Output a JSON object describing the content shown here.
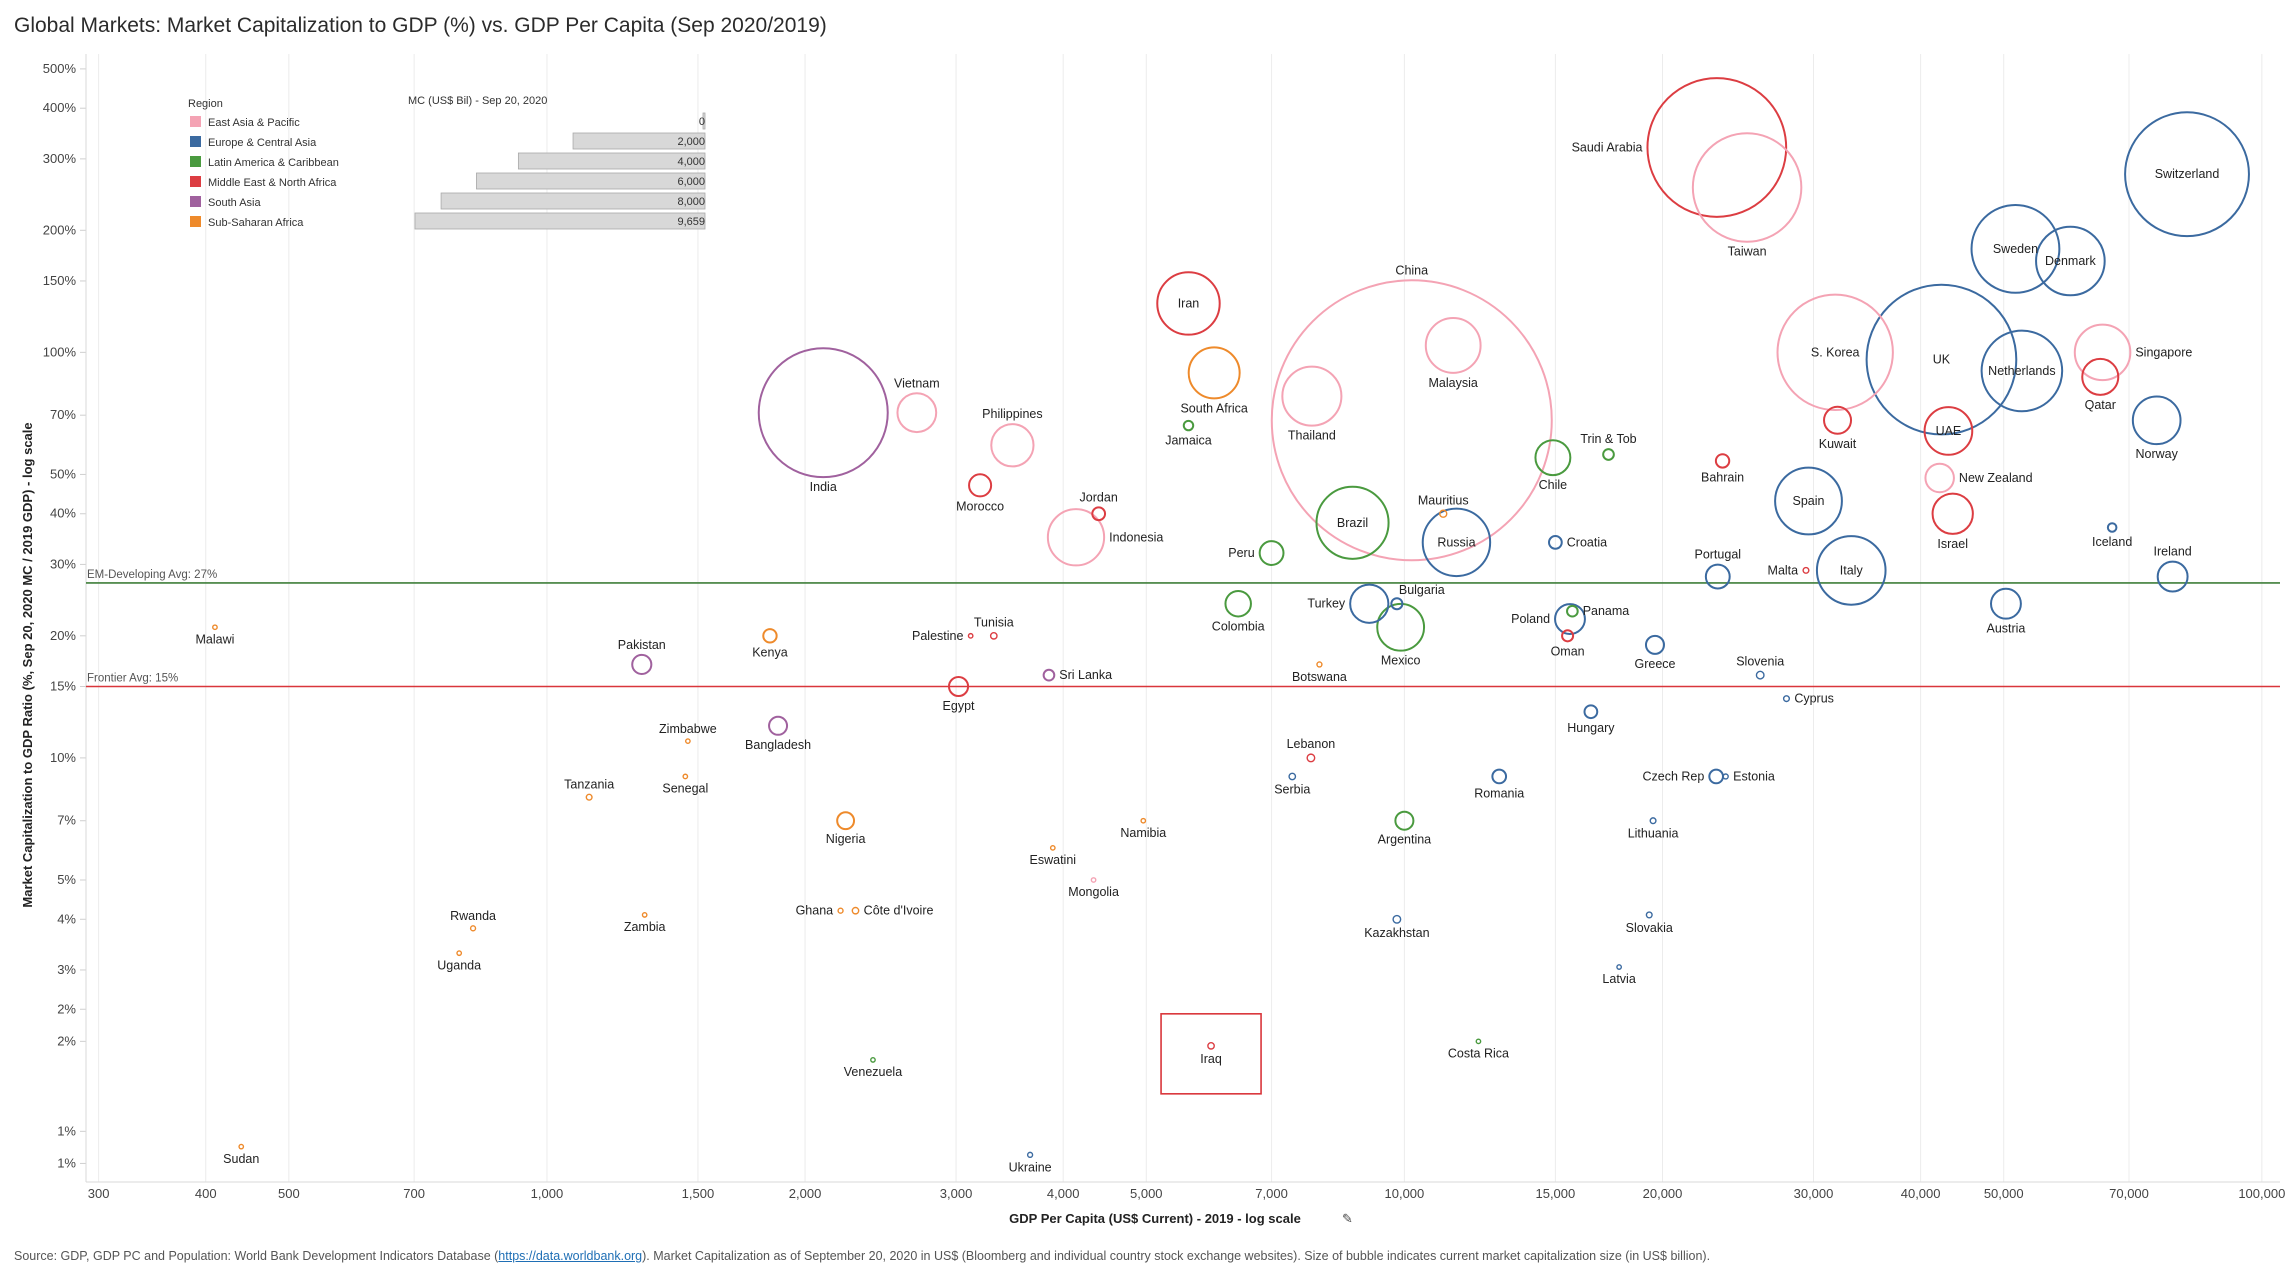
{
  "title": "Global Markets: Market Capitalization to GDP (%) vs. GDP Per Capita (Sep 2020/2019)",
  "source": {
    "prefix": "Source: GDP, GDP PC and Population: World Bank Development Indicators Database (",
    "link": "https://data.worldbank.org",
    "suffix": "). Market Capitalization as of September 20, 2020 in US$ (Bloomberg and individual country stock exchange websites). Size of bubble indicates current market capitalization size (in US$ billion)."
  },
  "colors": {
    "East Asia & Pacific": "#f4a3b4",
    "Europe & Central Asia": "#3b6aa0",
    "Latin America & Caribbean": "#4a9a3f",
    "Middle East & North Africa": "#dc3d42",
    "South Asia": "#a0619e",
    "Sub-Saharan Africa": "#ee8a2b",
    "em_line": "#3f7f3a",
    "frontier_line": "#d9363b",
    "highlight_box": "#d9363b"
  },
  "legend": {
    "region_title": "Region",
    "regions": [
      "East Asia & Pacific",
      "Europe & Central Asia",
      "Latin America & Caribbean",
      "Middle East & North Africa",
      "South Asia",
      "Sub-Saharan Africa"
    ],
    "size_title": "MC (US$ Bil) - Sep 20, 2020",
    "size_values": [
      0,
      2000,
      4000,
      6000,
      8000,
      9659
    ],
    "size_labels": [
      "0",
      "2,000",
      "4,000",
      "6,000",
      "8,000",
      "9,659"
    ]
  },
  "chart_data": {
    "type": "scatter",
    "xlabel": "GDP Per Capita (US$ Current) - 2019 - log scale",
    "ylabel": "Market Capitalization to GDP Ratio (%, Sep 20, 2020 MC / 2019 GDP) - log scale",
    "x_scale": "log",
    "y_scale": "log",
    "xlim": [
      290,
      105000
    ],
    "ylim": [
      0.9,
      520
    ],
    "x_ticks": [
      300,
      400,
      500,
      700,
      1000,
      1500,
      2000,
      3000,
      4000,
      5000,
      7000,
      10000,
      15000,
      20000,
      30000,
      40000,
      50000,
      70000,
      100000
    ],
    "x_tick_labels": [
      "300",
      "400",
      "500",
      "700",
      "1,000",
      "1,500",
      "2,000",
      "3,000",
      "4,000",
      "5,000",
      "7,000",
      "10,000",
      "15,000",
      "20,000",
      "30,000",
      "40,000",
      "50,000",
      "70,000",
      "100,000"
    ],
    "y_ticks": [
      1,
      1.2,
      2,
      2.4,
      3,
      4,
      5,
      7,
      10,
      15,
      20,
      30,
      40,
      50,
      70,
      100,
      150,
      200,
      300,
      400,
      500
    ],
    "y_tick_labels": [
      "1%",
      "1%",
      "2%",
      "2%",
      "3%",
      "4%",
      "5%",
      "7%",
      "10%",
      "15%",
      "20%",
      "30%",
      "40%",
      "50%",
      "70%",
      "100%",
      "150%",
      "200%",
      "300%",
      "400%",
      "500%"
    ],
    "reference_lines": [
      {
        "label": "EM-Developing Avg: 27%",
        "value": 27
      },
      {
        "label": "Frontier Avg: 15%",
        "value": 15
      }
    ],
    "highlight": {
      "label": "Iraq"
    },
    "points": [
      {
        "country": "Saudi Arabia",
        "region": "Middle East & North Africa",
        "gdp_pc": 23140,
        "mc_gdp": 320,
        "mc": 2370,
        "label_pos": "left"
      },
      {
        "country": "Taiwan",
        "region": "East Asia & Pacific",
        "gdp_pc": 25100,
        "mc_gdp": 255,
        "mc": 1450,
        "label_pos": "below"
      },
      {
        "country": "Switzerland",
        "region": "Europe & Central Asia",
        "gdp_pc": 81800,
        "mc_gdp": 275,
        "mc": 1890,
        "label_pos": "center"
      },
      {
        "country": "Sweden",
        "region": "Europe & Central Asia",
        "gdp_pc": 51600,
        "mc_gdp": 180,
        "mc": 950,
        "label_pos": "center"
      },
      {
        "country": "Denmark",
        "region": "Europe & Central Asia",
        "gdp_pc": 59800,
        "mc_gdp": 168,
        "mc": 580,
        "label_pos": "center"
      },
      {
        "country": "China",
        "region": "East Asia & Pacific",
        "gdp_pc": 10200,
        "mc_gdp": 68,
        "mc": 9659,
        "label_pos": "top"
      },
      {
        "country": "Iran",
        "region": "Middle East & North Africa",
        "gdp_pc": 5600,
        "mc_gdp": 132,
        "mc": 480,
        "label_pos": "center"
      },
      {
        "country": "South Africa",
        "region": "Sub-Saharan Africa",
        "gdp_pc": 6000,
        "mc_gdp": 89,
        "mc": 320,
        "label_pos": "below"
      },
      {
        "country": "Malaysia",
        "region": "East Asia & Pacific",
        "gdp_pc": 11400,
        "mc_gdp": 104,
        "mc": 370,
        "label_pos": "below"
      },
      {
        "country": "Thailand",
        "region": "East Asia & Pacific",
        "gdp_pc": 7800,
        "mc_gdp": 78,
        "mc": 430,
        "label_pos": "below"
      },
      {
        "country": "S. Korea",
        "region": "East Asia & Pacific",
        "gdp_pc": 31800,
        "mc_gdp": 100,
        "mc": 1640,
        "label_pos": "center"
      },
      {
        "country": "UK",
        "region": "Europe & Central Asia",
        "gdp_pc": 42300,
        "mc_gdp": 96,
        "mc": 2760,
        "label_pos": "center"
      },
      {
        "country": "Netherlands",
        "region": "Europe & Central Asia",
        "gdp_pc": 52500,
        "mc_gdp": 90,
        "mc": 800,
        "label_pos": "center"
      },
      {
        "country": "Singapore",
        "region": "East Asia & Pacific",
        "gdp_pc": 65200,
        "mc_gdp": 100,
        "mc": 380,
        "label_pos": "right"
      },
      {
        "country": "Qatar",
        "region": "Middle East & North Africa",
        "gdp_pc": 64800,
        "mc_gdp": 87,
        "mc": 160,
        "label_pos": "below"
      },
      {
        "country": "Norway",
        "region": "Europe & Central Asia",
        "gdp_pc": 75400,
        "mc_gdp": 68,
        "mc": 280,
        "label_pos": "below"
      },
      {
        "country": "Kuwait",
        "region": "Middle East & North Africa",
        "gdp_pc": 32000,
        "mc_gdp": 68,
        "mc": 90,
        "label_pos": "below"
      },
      {
        "country": "UAE",
        "region": "Middle East & North Africa",
        "gdp_pc": 43100,
        "mc_gdp": 64,
        "mc": 280,
        "label_pos": "center"
      },
      {
        "country": "New Zealand",
        "region": "East Asia & Pacific",
        "gdp_pc": 42100,
        "mc_gdp": 49,
        "mc": 100,
        "label_pos": "right"
      },
      {
        "country": "Israel",
        "region": "Middle East & North Africa",
        "gdp_pc": 43600,
        "mc_gdp": 40,
        "mc": 200,
        "label_pos": "below"
      },
      {
        "country": "Bahrain",
        "region": "Middle East & North Africa",
        "gdp_pc": 23500,
        "mc_gdp": 54,
        "mc": 22,
        "label_pos": "below"
      },
      {
        "country": "India",
        "region": "South Asia",
        "gdp_pc": 2100,
        "mc_gdp": 71,
        "mc": 2050,
        "label_pos": "below"
      },
      {
        "country": "Vietnam",
        "region": "East Asia & Pacific",
        "gdp_pc": 2700,
        "mc_gdp": 71,
        "mc": 185,
        "label_pos": "top"
      },
      {
        "country": "Philippines",
        "region": "East Asia & Pacific",
        "gdp_pc": 3490,
        "mc_gdp": 59,
        "mc": 220,
        "label_pos": "top"
      },
      {
        "country": "Jamaica",
        "region": "Latin America & Caribbean",
        "gdp_pc": 5600,
        "mc_gdp": 66,
        "mc": 11,
        "label_pos": "below"
      },
      {
        "country": "Morocco",
        "region": "Middle East & North Africa",
        "gdp_pc": 3200,
        "mc_gdp": 47,
        "mc": 60,
        "label_pos": "below"
      },
      {
        "country": "Jordan",
        "region": "Middle East & North Africa",
        "gdp_pc": 4400,
        "mc_gdp": 40,
        "mc": 20,
        "label_pos": "top"
      },
      {
        "country": "Indonesia",
        "region": "East Asia & Pacific",
        "gdp_pc": 4140,
        "mc_gdp": 35,
        "mc": 390,
        "label_pos": "right"
      },
      {
        "country": "Peru",
        "region": "Latin America & Caribbean",
        "gdp_pc": 7000,
        "mc_gdp": 32,
        "mc": 70,
        "label_pos": "left"
      },
      {
        "country": "Brazil",
        "region": "Latin America & Caribbean",
        "gdp_pc": 8700,
        "mc_gdp": 38,
        "mc": 640,
        "label_pos": "center"
      },
      {
        "country": "Russia",
        "region": "Europe & Central Asia",
        "gdp_pc": 11500,
        "mc_gdp": 34,
        "mc": 560,
        "label_pos": "center"
      },
      {
        "country": "Mauritius",
        "region": "Sub-Saharan Africa",
        "gdp_pc": 11100,
        "mc_gdp": 40,
        "mc": 6,
        "label_pos": "top"
      },
      {
        "country": "Chile",
        "region": "Latin America & Caribbean",
        "gdp_pc": 14900,
        "mc_gdp": 55,
        "mc": 150,
        "label_pos": "below"
      },
      {
        "country": "Trin & Tob",
        "region": "Latin America & Caribbean",
        "gdp_pc": 17300,
        "mc_gdp": 56,
        "mc": 14,
        "label_pos": "top"
      },
      {
        "country": "Croatia",
        "region": "Europe & Central Asia",
        "gdp_pc": 15000,
        "mc_gdp": 34,
        "mc": 20,
        "label_pos": "right"
      },
      {
        "country": "Portugal",
        "region": "Europe & Central Asia",
        "gdp_pc": 23200,
        "mc_gdp": 28,
        "mc": 70,
        "label_pos": "top"
      },
      {
        "country": "Spain",
        "region": "Europe & Central Asia",
        "gdp_pc": 29600,
        "mc_gdp": 43,
        "mc": 550,
        "label_pos": "center"
      },
      {
        "country": "Malta",
        "region": "Middle East & North Africa",
        "gdp_pc": 29400,
        "mc_gdp": 29,
        "mc": 4,
        "label_pos": "left"
      },
      {
        "country": "Italy",
        "region": "Europe & Central Asia",
        "gdp_pc": 33200,
        "mc_gdp": 29,
        "mc": 580,
        "label_pos": "center"
      },
      {
        "country": "Iceland",
        "region": "Europe & Central Asia",
        "gdp_pc": 66900,
        "mc_gdp": 37,
        "mc": 9,
        "label_pos": "below"
      },
      {
        "country": "Ireland",
        "region": "Europe & Central Asia",
        "gdp_pc": 78700,
        "mc_gdp": 28,
        "mc": 110,
        "label_pos": "top"
      },
      {
        "country": "Austria",
        "region": "Europe & Central Asia",
        "gdp_pc": 50300,
        "mc_gdp": 24,
        "mc": 110,
        "label_pos": "below"
      },
      {
        "country": "Colombia",
        "region": "Latin America & Caribbean",
        "gdp_pc": 6400,
        "mc_gdp": 24,
        "mc": 80,
        "label_pos": "below"
      },
      {
        "country": "Turkey",
        "region": "Europe & Central Asia",
        "gdp_pc": 9100,
        "mc_gdp": 24,
        "mc": 180,
        "label_pos": "left"
      },
      {
        "country": "Bulgaria",
        "region": "Europe & Central Asia",
        "gdp_pc": 9800,
        "mc_gdp": 24,
        "mc": 15,
        "label_pos": "top-right"
      },
      {
        "country": "Mexico",
        "region": "Latin America & Caribbean",
        "gdp_pc": 9900,
        "mc_gdp": 21,
        "mc": 270,
        "label_pos": "below"
      },
      {
        "country": "Panama",
        "region": "Latin America & Caribbean",
        "gdp_pc": 15700,
        "mc_gdp": 23,
        "mc": 14,
        "label_pos": "right"
      },
      {
        "country": "Poland",
        "region": "Europe & Central Asia",
        "gdp_pc": 15600,
        "mc_gdp": 22,
        "mc": 110,
        "label_pos": "left"
      },
      {
        "country": "Oman",
        "region": "Middle East & North Africa",
        "gdp_pc": 15500,
        "mc_gdp": 20,
        "mc": 15,
        "label_pos": "below"
      },
      {
        "country": "Greece",
        "region": "Europe & Central Asia",
        "gdp_pc": 19600,
        "mc_gdp": 19,
        "mc": 40,
        "label_pos": "below"
      },
      {
        "country": "Slovenia",
        "region": "Europe & Central Asia",
        "gdp_pc": 26000,
        "mc_gdp": 16,
        "mc": 7,
        "label_pos": "top"
      },
      {
        "country": "Cyprus",
        "region": "Europe & Central Asia",
        "gdp_pc": 27900,
        "mc_gdp": 14,
        "mc": 4,
        "label_pos": "right"
      },
      {
        "country": "Hungary",
        "region": "Europe & Central Asia",
        "gdp_pc": 16500,
        "mc_gdp": 13,
        "mc": 20,
        "label_pos": "below"
      },
      {
        "country": "Malawi",
        "region": "Sub-Saharan Africa",
        "gdp_pc": 410,
        "mc_gdp": 21,
        "mc": 1,
        "label_pos": "below"
      },
      {
        "country": "Kenya",
        "region": "Sub-Saharan Africa",
        "gdp_pc": 1820,
        "mc_gdp": 20,
        "mc": 22,
        "label_pos": "below"
      },
      {
        "country": "Pakistan",
        "region": "South Asia",
        "gdp_pc": 1290,
        "mc_gdp": 17,
        "mc": 45,
        "label_pos": "top"
      },
      {
        "country": "Palestine",
        "region": "Middle East & North Africa",
        "gdp_pc": 3120,
        "mc_gdp": 20,
        "mc": 1,
        "label_pos": "left"
      },
      {
        "country": "Tunisia",
        "region": "Middle East & North Africa",
        "gdp_pc": 3320,
        "mc_gdp": 20,
        "mc": 5,
        "label_pos": "top"
      },
      {
        "country": "Sri Lanka",
        "region": "South Asia",
        "gdp_pc": 3850,
        "mc_gdp": 16,
        "mc": 14,
        "label_pos": "right"
      },
      {
        "country": "Botswana",
        "region": "Sub-Saharan Africa",
        "gdp_pc": 7960,
        "mc_gdp": 17,
        "mc": 3,
        "label_pos": "below"
      },
      {
        "country": "Egypt",
        "region": "Middle East & North Africa",
        "gdp_pc": 3020,
        "mc_gdp": 15,
        "mc": 45,
        "label_pos": "below"
      },
      {
        "country": "Zimbabwe",
        "region": "Sub-Saharan Africa",
        "gdp_pc": 1460,
        "mc_gdp": 11,
        "mc": 2,
        "label_pos": "top"
      },
      {
        "country": "Bangladesh",
        "region": "South Asia",
        "gdp_pc": 1860,
        "mc_gdp": 12,
        "mc": 40,
        "label_pos": "below"
      },
      {
        "country": "Senegal",
        "region": "Sub-Saharan Africa",
        "gdp_pc": 1450,
        "mc_gdp": 9,
        "mc": 2,
        "label_pos": "below"
      },
      {
        "country": "Tanzania",
        "region": "Sub-Saharan Africa",
        "gdp_pc": 1120,
        "mc_gdp": 8,
        "mc": 4,
        "label_pos": "top"
      },
      {
        "country": "Lebanon",
        "region": "Middle East & North Africa",
        "gdp_pc": 7780,
        "mc_gdp": 10,
        "mc": 7,
        "label_pos": "top"
      },
      {
        "country": "Serbia",
        "region": "Europe & Central Asia",
        "gdp_pc": 7400,
        "mc_gdp": 9,
        "mc": 5,
        "label_pos": "below"
      },
      {
        "country": "Romania",
        "region": "Europe & Central Asia",
        "gdp_pc": 12900,
        "mc_gdp": 9,
        "mc": 23,
        "label_pos": "below"
      },
      {
        "country": "Czech Rep",
        "region": "Europe & Central Asia",
        "gdp_pc": 23100,
        "mc_gdp": 9,
        "mc": 23,
        "label_pos": "left"
      },
      {
        "country": "Estonia",
        "region": "Europe & Central Asia",
        "gdp_pc": 23700,
        "mc_gdp": 9,
        "mc": 3,
        "label_pos": "right"
      },
      {
        "country": "Namibia",
        "region": "Sub-Saharan Africa",
        "gdp_pc": 4960,
        "mc_gdp": 7,
        "mc": 1,
        "label_pos": "below"
      },
      {
        "country": "Nigeria",
        "region": "Sub-Saharan Africa",
        "gdp_pc": 2230,
        "mc_gdp": 7,
        "mc": 35,
        "label_pos": "below"
      },
      {
        "country": "Argentina",
        "region": "Latin America & Caribbean",
        "gdp_pc": 10000,
        "mc_gdp": 7,
        "mc": 40,
        "label_pos": "below"
      },
      {
        "country": "Lithuania",
        "region": "Europe & Central Asia",
        "gdp_pc": 19500,
        "mc_gdp": 7,
        "mc": 4,
        "label_pos": "below"
      },
      {
        "country": "Eswatini",
        "region": "Sub-Saharan Africa",
        "gdp_pc": 3890,
        "mc_gdp": 6,
        "mc": 1,
        "label_pos": "below"
      },
      {
        "country": "Mongolia",
        "region": "East Asia & Pacific",
        "gdp_pc": 4340,
        "mc_gdp": 5,
        "mc": 1,
        "label_pos": "below"
      },
      {
        "country": "Rwanda",
        "region": "Sub-Saharan Africa",
        "gdp_pc": 820,
        "mc_gdp": 3.8,
        "mc": 3,
        "label_pos": "top"
      },
      {
        "country": "Zambia",
        "region": "Sub-Saharan Africa",
        "gdp_pc": 1300,
        "mc_gdp": 4.1,
        "mc": 1,
        "label_pos": "below"
      },
      {
        "country": "Uganda",
        "region": "Sub-Saharan Africa",
        "gdp_pc": 790,
        "mc_gdp": 3.3,
        "mc": 1,
        "label_pos": "below"
      },
      {
        "country": "Ghana",
        "region": "Sub-Saharan Africa",
        "gdp_pc": 2200,
        "mc_gdp": 4.2,
        "mc": 3,
        "label_pos": "left"
      },
      {
        "country": "Côte d'Ivoire",
        "region": "Sub-Saharan Africa",
        "gdp_pc": 2290,
        "mc_gdp": 4.2,
        "mc": 5,
        "label_pos": "right"
      },
      {
        "country": "Kazakhstan",
        "region": "Europe & Central Asia",
        "gdp_pc": 9800,
        "mc_gdp": 4.0,
        "mc": 7,
        "label_pos": "below"
      },
      {
        "country": "Slovakia",
        "region": "Europe & Central Asia",
        "gdp_pc": 19300,
        "mc_gdp": 4.1,
        "mc": 4,
        "label_pos": "below"
      },
      {
        "country": "Latvia",
        "region": "Europe & Central Asia",
        "gdp_pc": 17800,
        "mc_gdp": 3.05,
        "mc": 1,
        "label_pos": "below"
      },
      {
        "country": "Iraq",
        "region": "Middle East & North Africa",
        "gdp_pc": 5950,
        "mc_gdp": 1.95,
        "mc": 5,
        "label_pos": "below"
      },
      {
        "country": "Costa Rica",
        "region": "Latin America & Caribbean",
        "gdp_pc": 12200,
        "mc_gdp": 2.0,
        "mc": 1,
        "label_pos": "below"
      },
      {
        "country": "Venezuela",
        "region": "Latin America & Caribbean",
        "gdp_pc": 2400,
        "mc_gdp": 1.8,
        "mc": 1,
        "label_pos": "below"
      },
      {
        "country": "Sudan",
        "region": "Sub-Saharan Africa",
        "gdp_pc": 440,
        "mc_gdp": 1.1,
        "mc": 1,
        "label_pos": "below"
      },
      {
        "country": "Ukraine",
        "region": "Europe & Central Asia",
        "gdp_pc": 3660,
        "mc_gdp": 1.05,
        "mc": 3,
        "label_pos": "below"
      }
    ]
  }
}
